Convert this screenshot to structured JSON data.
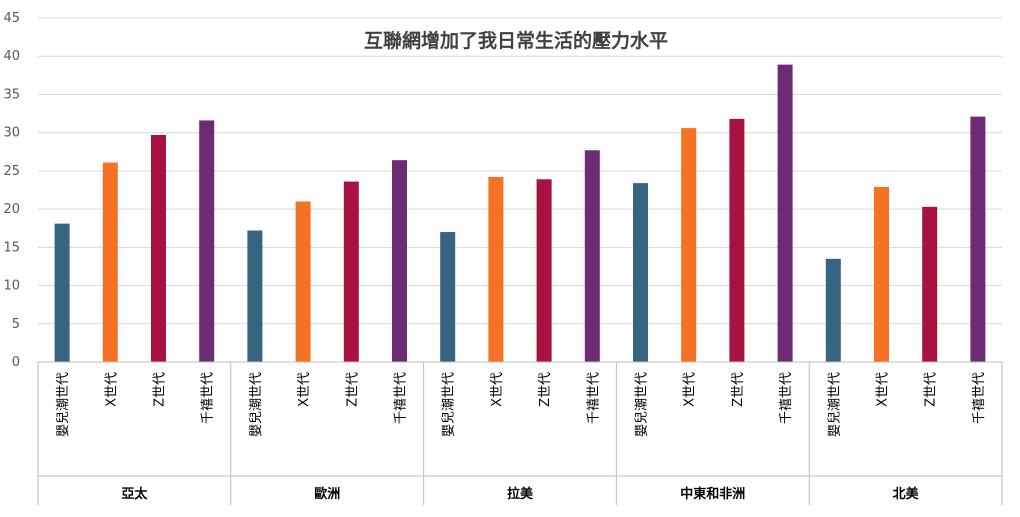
{
  "chart_data": {
    "type": "bar",
    "title": "互聯網增加了我日常生活的壓力水平",
    "xlabel": "",
    "ylabel": "",
    "ylim": [
      0,
      45
    ],
    "yticks": [
      "0",
      "5",
      "10",
      "15",
      "20",
      "25",
      "30",
      "35",
      "40",
      "45"
    ],
    "grid": true,
    "groups": [
      {
        "label": "亞太",
        "categories": [
          "嬰兒潮世代",
          "X世代",
          "Z世代",
          "千禧世代"
        ],
        "values": [
          18.1,
          26.1,
          29.7,
          31.6
        ]
      },
      {
        "label": "歐洲",
        "categories": [
          "嬰兒潮世代",
          "X世代",
          "Z世代",
          "千禧世代"
        ],
        "values": [
          17.2,
          21.0,
          23.6,
          26.4
        ]
      },
      {
        "label": "拉美",
        "categories": [
          "嬰兒潮世代",
          "X世代",
          "Z世代",
          "千禧世代"
        ],
        "values": [
          17.0,
          24.2,
          23.9,
          27.7
        ]
      },
      {
        "label": "中東和非洲",
        "categories": [
          "嬰兒潮世代",
          "X世代",
          "Z世代",
          "千禧世代"
        ],
        "values": [
          23.4,
          30.6,
          31.8,
          38.9
        ]
      },
      {
        "label": "北美",
        "categories": [
          "嬰兒潮世代",
          "X世代",
          "Z世代",
          "千禧世代"
        ],
        "values": [
          13.5,
          22.9,
          20.3,
          32.1
        ]
      }
    ],
    "colors": [
      "#376480",
      "#f57224",
      "#a8123e",
      "#6c2b72"
    ]
  }
}
